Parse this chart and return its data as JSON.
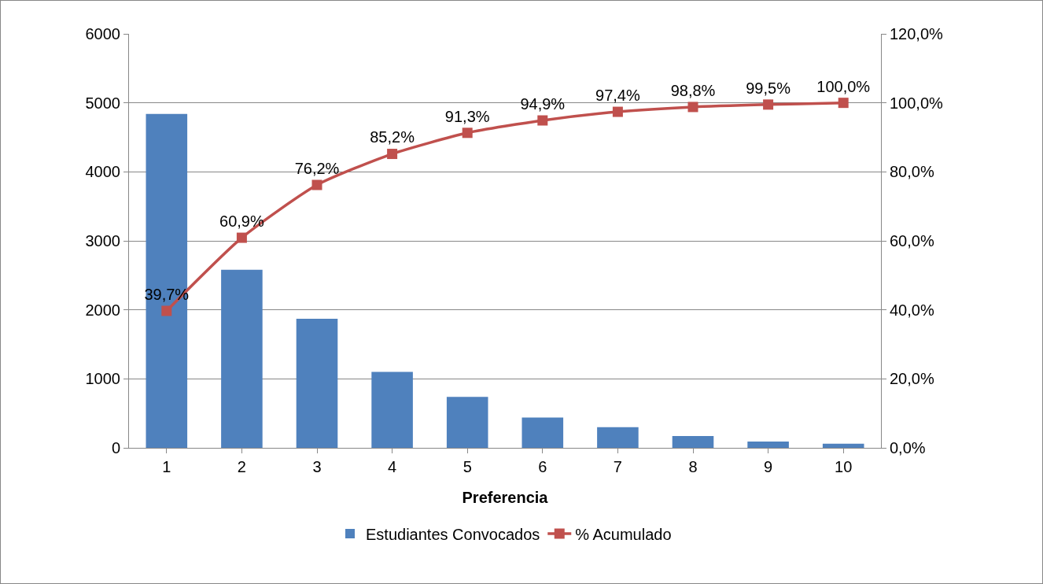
{
  "chart_data": {
    "type": "bar",
    "xlabel": "Preferencia",
    "categories": [
      "1",
      "2",
      "3",
      "4",
      "5",
      "6",
      "7",
      "8",
      "9",
      "10"
    ],
    "series": [
      {
        "name": "Estudiantes Convocados",
        "color": "#4f81bd",
        "values": [
          4840,
          2580,
          1870,
          1100,
          740,
          440,
          300,
          170,
          90,
          60
        ]
      },
      {
        "name": "% Acumulado",
        "type": "line",
        "axis": "y2",
        "color": "#c0504d",
        "marker": "square",
        "values": [
          39.7,
          60.9,
          76.2,
          85.2,
          91.3,
          94.9,
          97.4,
          98.8,
          99.5,
          100.0
        ],
        "value_labels": [
          "39,7%",
          "60,9%",
          "76,2%",
          "85,2%",
          "91,3%",
          "94,9%",
          "97,4%",
          "98,8%",
          "99,5%",
          "100,0%"
        ]
      }
    ],
    "ylim": [
      0,
      6000
    ],
    "yticks": [
      0,
      1000,
      2000,
      3000,
      4000,
      5000,
      6000
    ],
    "y2lim": [
      0,
      120
    ],
    "y2ticks": [
      {
        "value": 0,
        "label": "0,0%"
      },
      {
        "value": 20,
        "label": "20,0%"
      },
      {
        "value": 40,
        "label": "40,0%"
      },
      {
        "value": 60,
        "label": "60,0%"
      },
      {
        "value": 80,
        "label": "80,0%"
      },
      {
        "value": 100,
        "label": "100,0%"
      },
      {
        "value": 120,
        "label": "120,0%"
      }
    ],
    "grid": "y",
    "legend": "bottom"
  }
}
